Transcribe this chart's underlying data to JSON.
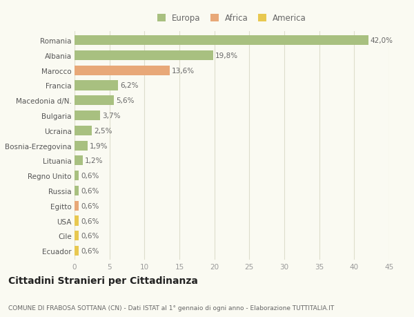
{
  "countries": [
    "Romania",
    "Albania",
    "Marocco",
    "Francia",
    "Macedonia d/N.",
    "Bulgaria",
    "Ucraina",
    "Bosnia-Erzegovina",
    "Lituania",
    "Regno Unito",
    "Russia",
    "Egitto",
    "USA",
    "Cile",
    "Ecuador"
  ],
  "values": [
    42.0,
    19.8,
    13.6,
    6.2,
    5.6,
    3.7,
    2.5,
    1.9,
    1.2,
    0.6,
    0.6,
    0.6,
    0.6,
    0.6,
    0.6
  ],
  "labels": [
    "42,0%",
    "19,8%",
    "13,6%",
    "6,2%",
    "5,6%",
    "3,7%",
    "2,5%",
    "1,9%",
    "1,2%",
    "0,6%",
    "0,6%",
    "0,6%",
    "0,6%",
    "0,6%",
    "0,6%"
  ],
  "continents": [
    "Europa",
    "Europa",
    "Africa",
    "Europa",
    "Europa",
    "Europa",
    "Europa",
    "Europa",
    "Europa",
    "Europa",
    "Europa",
    "Africa",
    "America",
    "America",
    "America"
  ],
  "colors": {
    "Europa": "#a8c080",
    "Africa": "#e8a878",
    "America": "#e8c850"
  },
  "xlim": [
    0,
    45
  ],
  "xticks": [
    0,
    5,
    10,
    15,
    20,
    25,
    30,
    35,
    40,
    45
  ],
  "background_color": "#fafaf2",
  "title": "Cittadini Stranieri per Cittadinanza",
  "subtitle": "COMUNE DI FRABOSA SOTTANA (CN) - Dati ISTAT al 1° gennaio di ogni anno - Elaborazione TUTTITALIA.IT",
  "bar_height": 0.65,
  "label_fontsize": 7.5,
  "ytick_fontsize": 7.5,
  "xtick_fontsize": 7.5,
  "title_fontsize": 10,
  "subtitle_fontsize": 6.5,
  "legend_fontsize": 8.5
}
